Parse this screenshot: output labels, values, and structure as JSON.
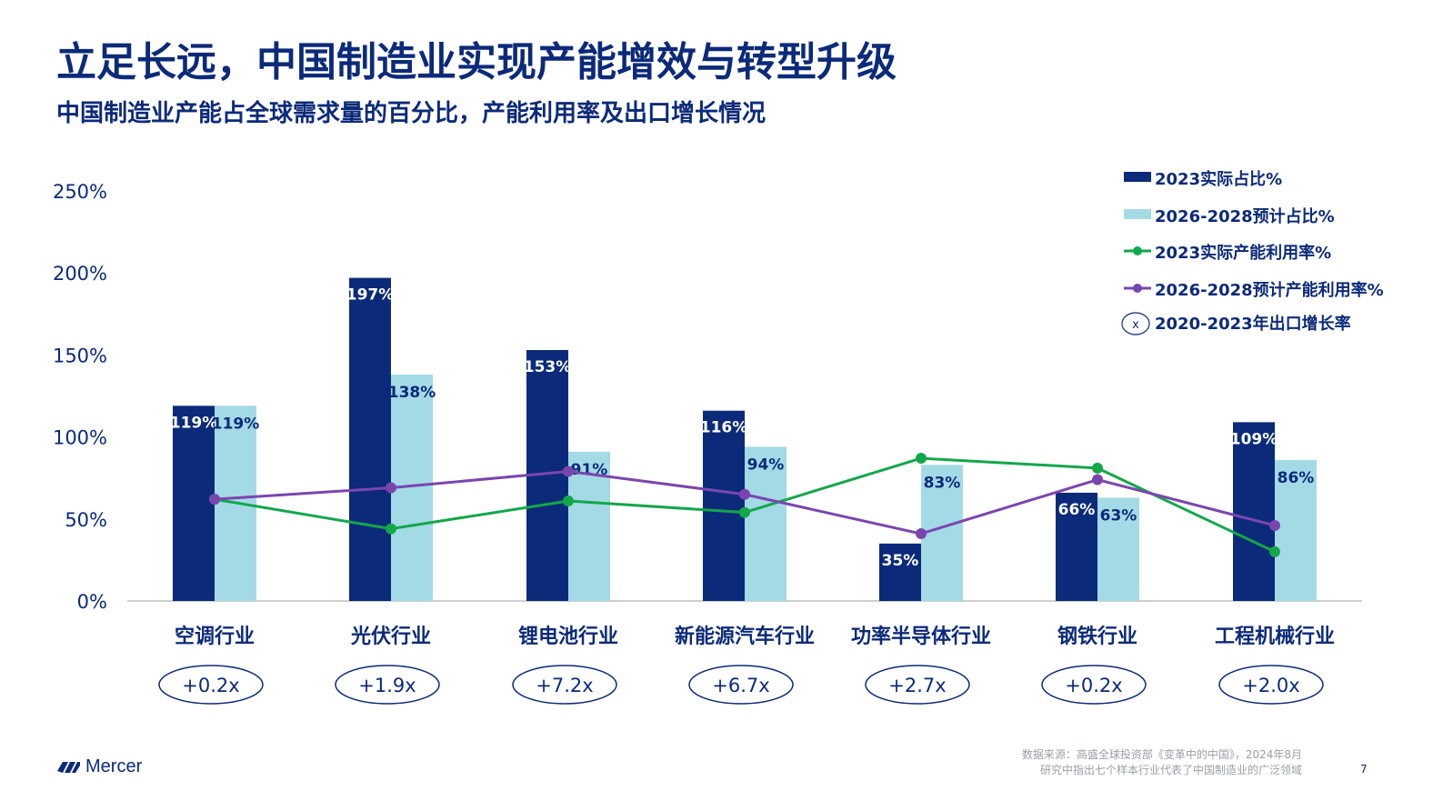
{
  "title": "立足长远，中国制造业实现产能增效与转型升级",
  "subtitle": "中国制造业产能占全球需求量的百分比，产能利用率及出口增长情况",
  "colors": {
    "dark_blue": "#0b2a7a",
    "light_blue": "#a3dae6",
    "green": "#13a74a",
    "purple": "#7b45b0"
  },
  "chart_data": {
    "type": "bar",
    "categories": [
      "空调行业",
      "光伏行业",
      "锂电池行业",
      "新能源汽车行业",
      "功率半导体行业",
      "钢铁行业",
      "工程机械行业"
    ],
    "ylim": [
      0,
      250
    ],
    "yticks": [
      "0%",
      "50%",
      "100%",
      "150%",
      "200%",
      "250%"
    ],
    "ytick_values": [
      0,
      50,
      100,
      150,
      200,
      250
    ],
    "series": [
      {
        "name": "2023实际占比%",
        "kind": "bar",
        "values": [
          119,
          197,
          153,
          116,
          35,
          66,
          109
        ],
        "labels": [
          "119%",
          "197%",
          "153%",
          "116%",
          "35%",
          "66%",
          "109%"
        ]
      },
      {
        "name": "2026-2028预计占比%",
        "kind": "bar",
        "values": [
          119,
          138,
          91,
          94,
          83,
          63,
          86
        ],
        "labels": [
          "119%",
          "138%",
          "91%",
          "94%",
          "83%",
          "63%",
          "86%"
        ]
      },
      {
        "name": "2023实际产能利用率%",
        "kind": "line",
        "values": [
          62,
          44,
          61,
          54,
          87,
          81,
          30
        ]
      },
      {
        "name": "2026-2028预计产能利用率%",
        "kind": "line",
        "values": [
          62,
          69,
          79,
          65,
          41,
          74,
          46
        ]
      }
    ],
    "export_growth": {
      "name": "2020-2023年出口增长率",
      "legend_marker": "x",
      "values": [
        "+0.2x",
        "+1.9x",
        "+7.2x",
        "+6.7x",
        "+2.7x",
        "+0.2x",
        "+2.0x"
      ]
    },
    "legend_position": "top-right",
    "grid": false
  },
  "footer": {
    "logo_text": "Mercer",
    "source_line1": "数据来源：高盛全球投资部《变革中的中国》，2024年8月",
    "source_line2": "研究中指出七个样本行业代表了中国制造业的广泛领域",
    "page_number": "7"
  }
}
